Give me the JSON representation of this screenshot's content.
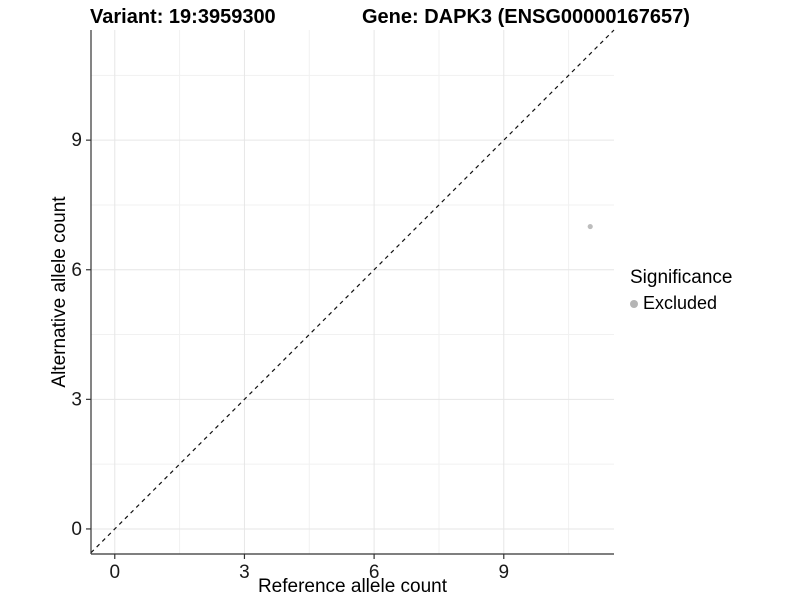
{
  "titles": {
    "left": "Variant: 19:3959300",
    "right": "Gene: DAPK3 (ENSG00000167657)"
  },
  "chart_data": {
    "type": "scatter",
    "title": "Variant: 19:3959300  /  Gene: DAPK3 (ENSG00000167657)",
    "xlabel": "Reference allele count",
    "ylabel": "Alternative allele count",
    "xlim": [
      -0.55,
      11.55
    ],
    "ylim": [
      -0.58,
      11.55
    ],
    "xticks": [
      0,
      3,
      6,
      9
    ],
    "yticks": [
      0,
      3,
      6,
      9
    ],
    "xminor": [
      1.5,
      4.5,
      7.5,
      10.5
    ],
    "yminor": [
      1.5,
      4.5,
      7.5,
      10.5
    ],
    "grid": "on",
    "series": [
      {
        "name": "Excluded",
        "color": "#bdbdbd",
        "points": [
          {
            "x": 11,
            "y": 7
          }
        ]
      }
    ],
    "abline": {
      "slope": 1,
      "intercept": 0,
      "style": "dashed",
      "color": "#111111"
    },
    "legend": {
      "position": "right",
      "title": "Significance",
      "items": [
        {
          "label": "Excluded",
          "color": "#b5b5b5",
          "marker": "circle-icon"
        }
      ]
    }
  },
  "colors": {
    "background": "#ffffff",
    "axis_line": "#333333",
    "tick_text": "#1a1a1a",
    "grid_major": "#e6e6e6",
    "grid_minor": "#f1f1f1",
    "point": "#bdbdbd"
  }
}
